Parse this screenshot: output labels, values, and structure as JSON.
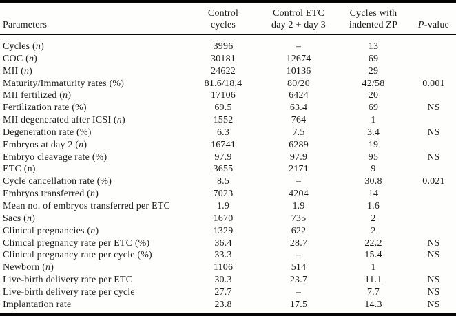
{
  "colors": {
    "background": "#fefefd",
    "text": "#1c1c1c",
    "rule": "#050505"
  },
  "table": {
    "headers": {
      "param": "Parameters",
      "col1_line1": "Control",
      "col1_line2": "cycles",
      "col2_line1": "Control ETC",
      "col2_line2": "day 2 + day 3",
      "col3_line1": "Cycles with",
      "col3_line2": "indented ZP",
      "pvalue_em": "P",
      "pvalue_rest": "-value"
    },
    "rows": [
      {
        "pre": "Cycles (",
        "em": "n",
        "post": ")",
        "c1": "3996",
        "c2": "–",
        "c3": "13",
        "p": ""
      },
      {
        "pre": "COC (",
        "em": "n",
        "post": ")",
        "c1": "30181",
        "c2": "12674",
        "c3": "69",
        "p": ""
      },
      {
        "pre": "MII (",
        "em": "n",
        "post": ")",
        "c1": "24622",
        "c2": "10136",
        "c3": "29",
        "p": ""
      },
      {
        "pre": "Maturity/Immaturity rates (%)",
        "em": "",
        "post": "",
        "c1": "81.6/18.4",
        "c2": "80/20",
        "c3": "42/58",
        "p": "0.001"
      },
      {
        "pre": "MII fertilized (",
        "em": "n",
        "post": ")",
        "c1": "17106",
        "c2": "6424",
        "c3": "20",
        "p": ""
      },
      {
        "pre": "Fertilization rate (%)",
        "em": "",
        "post": "",
        "c1": "69.5",
        "c2": "63.4",
        "c3": "69",
        "p": "NS"
      },
      {
        "pre": "MII degenerated after ICSI (",
        "em": "n",
        "post": ")",
        "c1": "1552",
        "c2": "764",
        "c3": "1",
        "p": ""
      },
      {
        "pre": "Degeneration rate (%)",
        "em": "",
        "post": "",
        "c1": "6.3",
        "c2": "7.5",
        "c3": "3.4",
        "p": "NS"
      },
      {
        "pre": "Embryos at day 2 (",
        "em": "n",
        "post": ")",
        "c1": "16741",
        "c2": "6289",
        "c3": "19",
        "p": ""
      },
      {
        "pre": "Embryo cleavage rate (%)",
        "em": "",
        "post": "",
        "c1": "97.9",
        "c2": "97.9",
        "c3": "95",
        "p": "NS"
      },
      {
        "pre": "ETC (n)",
        "em": "",
        "post": "",
        "c1": "3655",
        "c2": "2171",
        "c3": "9",
        "p": ""
      },
      {
        "pre": "Cycle cancellation rate (%)",
        "em": "",
        "post": "",
        "c1": "8.5",
        "c2": "–",
        "c3": "30.8",
        "p": "0.021"
      },
      {
        "pre": "Embryos transferred (",
        "em": "n",
        "post": ")",
        "c1": "7023",
        "c2": "4204",
        "c3": "14",
        "p": ""
      },
      {
        "pre": "Mean no. of embryos transferred per ETC",
        "em": "",
        "post": "",
        "c1": "1.9",
        "c2": "1.9",
        "c3": "1.6",
        "p": ""
      },
      {
        "pre": "Sacs (",
        "em": "n",
        "post": ")",
        "c1": "1670",
        "c2": "735",
        "c3": "2",
        "p": ""
      },
      {
        "pre": "Clinical pregnancies (",
        "em": "n",
        "post": ")",
        "c1": "1329",
        "c2": "622",
        "c3": "2",
        "p": ""
      },
      {
        "pre": "Clinical pregnancy rate per ETC (%)",
        "em": "",
        "post": "",
        "c1": "36.4",
        "c2": "28.7",
        "c3": "22.2",
        "p": "NS"
      },
      {
        "pre": "Clinical pregnancy rate per cycle (%)",
        "em": "",
        "post": "",
        "c1": "33.3",
        "c2": "–",
        "c3": "15.4",
        "p": "NS"
      },
      {
        "pre": "Newborn (",
        "em": "n",
        "post": ")",
        "c1": "1106",
        "c2": "514",
        "c3": "1",
        "p": ""
      },
      {
        "pre": "Live-birth delivery rate per ETC",
        "em": "",
        "post": "",
        "c1": "30.3",
        "c2": "23.7",
        "c3": "11.1",
        "p": "NS"
      },
      {
        "pre": "Live-birth delivery rate per cycle",
        "em": "",
        "post": "",
        "c1": "27.7",
        "c2": "–",
        "c3": "7.7",
        "p": "NS"
      },
      {
        "pre": "Implantation rate",
        "em": "",
        "post": "",
        "c1": "23.8",
        "c2": "17.5",
        "c3": "14.3",
        "p": "NS"
      }
    ]
  }
}
